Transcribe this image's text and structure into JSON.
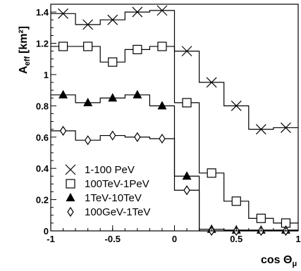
{
  "chart_data": {
    "type": "line",
    "xlabel": "cos Θ",
    "xlabel_subscript": "μ",
    "ylabel": "A",
    "ylabel_subscript": "eff",
    "ylabel_unit": "[km²]",
    "xlim": [
      -1,
      1
    ],
    "ylim": [
      0,
      1.45
    ],
    "x_ticks": [
      -1,
      -0.5,
      0,
      0.5,
      1
    ],
    "x_tick_labels": [
      "-1",
      "-0.5",
      "0",
      "0.5",
      "1"
    ],
    "y_ticks": [
      0,
      0.2,
      0.4,
      0.6,
      0.8,
      1,
      1.2,
      1.4
    ],
    "y_tick_labels": [
      "0",
      "0.2",
      "0.4",
      "0.6",
      "0.8",
      "1",
      "1.2",
      "1.4"
    ],
    "grid": false,
    "legend_position": "bottom-left",
    "bin_edges": [
      -1,
      -0.8,
      -0.6,
      -0.4,
      -0.2,
      0,
      0.2,
      0.4,
      0.6,
      0.8,
      1
    ],
    "x": [
      -0.9,
      -0.7,
      -0.5,
      -0.3,
      -0.1,
      0.1,
      0.3,
      0.5,
      0.7,
      0.9
    ],
    "series": [
      {
        "name": "1-100 PeV",
        "marker": "cross",
        "values": [
          1.39,
          1.32,
          1.35,
          1.4,
          1.41,
          1.15,
          0.95,
          0.8,
          0.65,
          0.66
        ]
      },
      {
        "name": "100TeV-1PeV",
        "marker": "square",
        "values": [
          1.18,
          1.18,
          1.08,
          1.16,
          1.18,
          0.82,
          0.37,
          0.19,
          0.08,
          0.05
        ]
      },
      {
        "name": "1TeV-10TeV",
        "marker": "triangle",
        "values": [
          0.87,
          0.82,
          0.85,
          0.87,
          0.8,
          0.35,
          0.01,
          0.005,
          0.005,
          0.005
        ]
      },
      {
        "name": "100GeV-1TeV",
        "marker": "diamond",
        "values": [
          0.64,
          0.58,
          0.61,
          0.6,
          0.59,
          0.26,
          0.0,
          0.0,
          0.0,
          0.0
        ]
      }
    ]
  }
}
